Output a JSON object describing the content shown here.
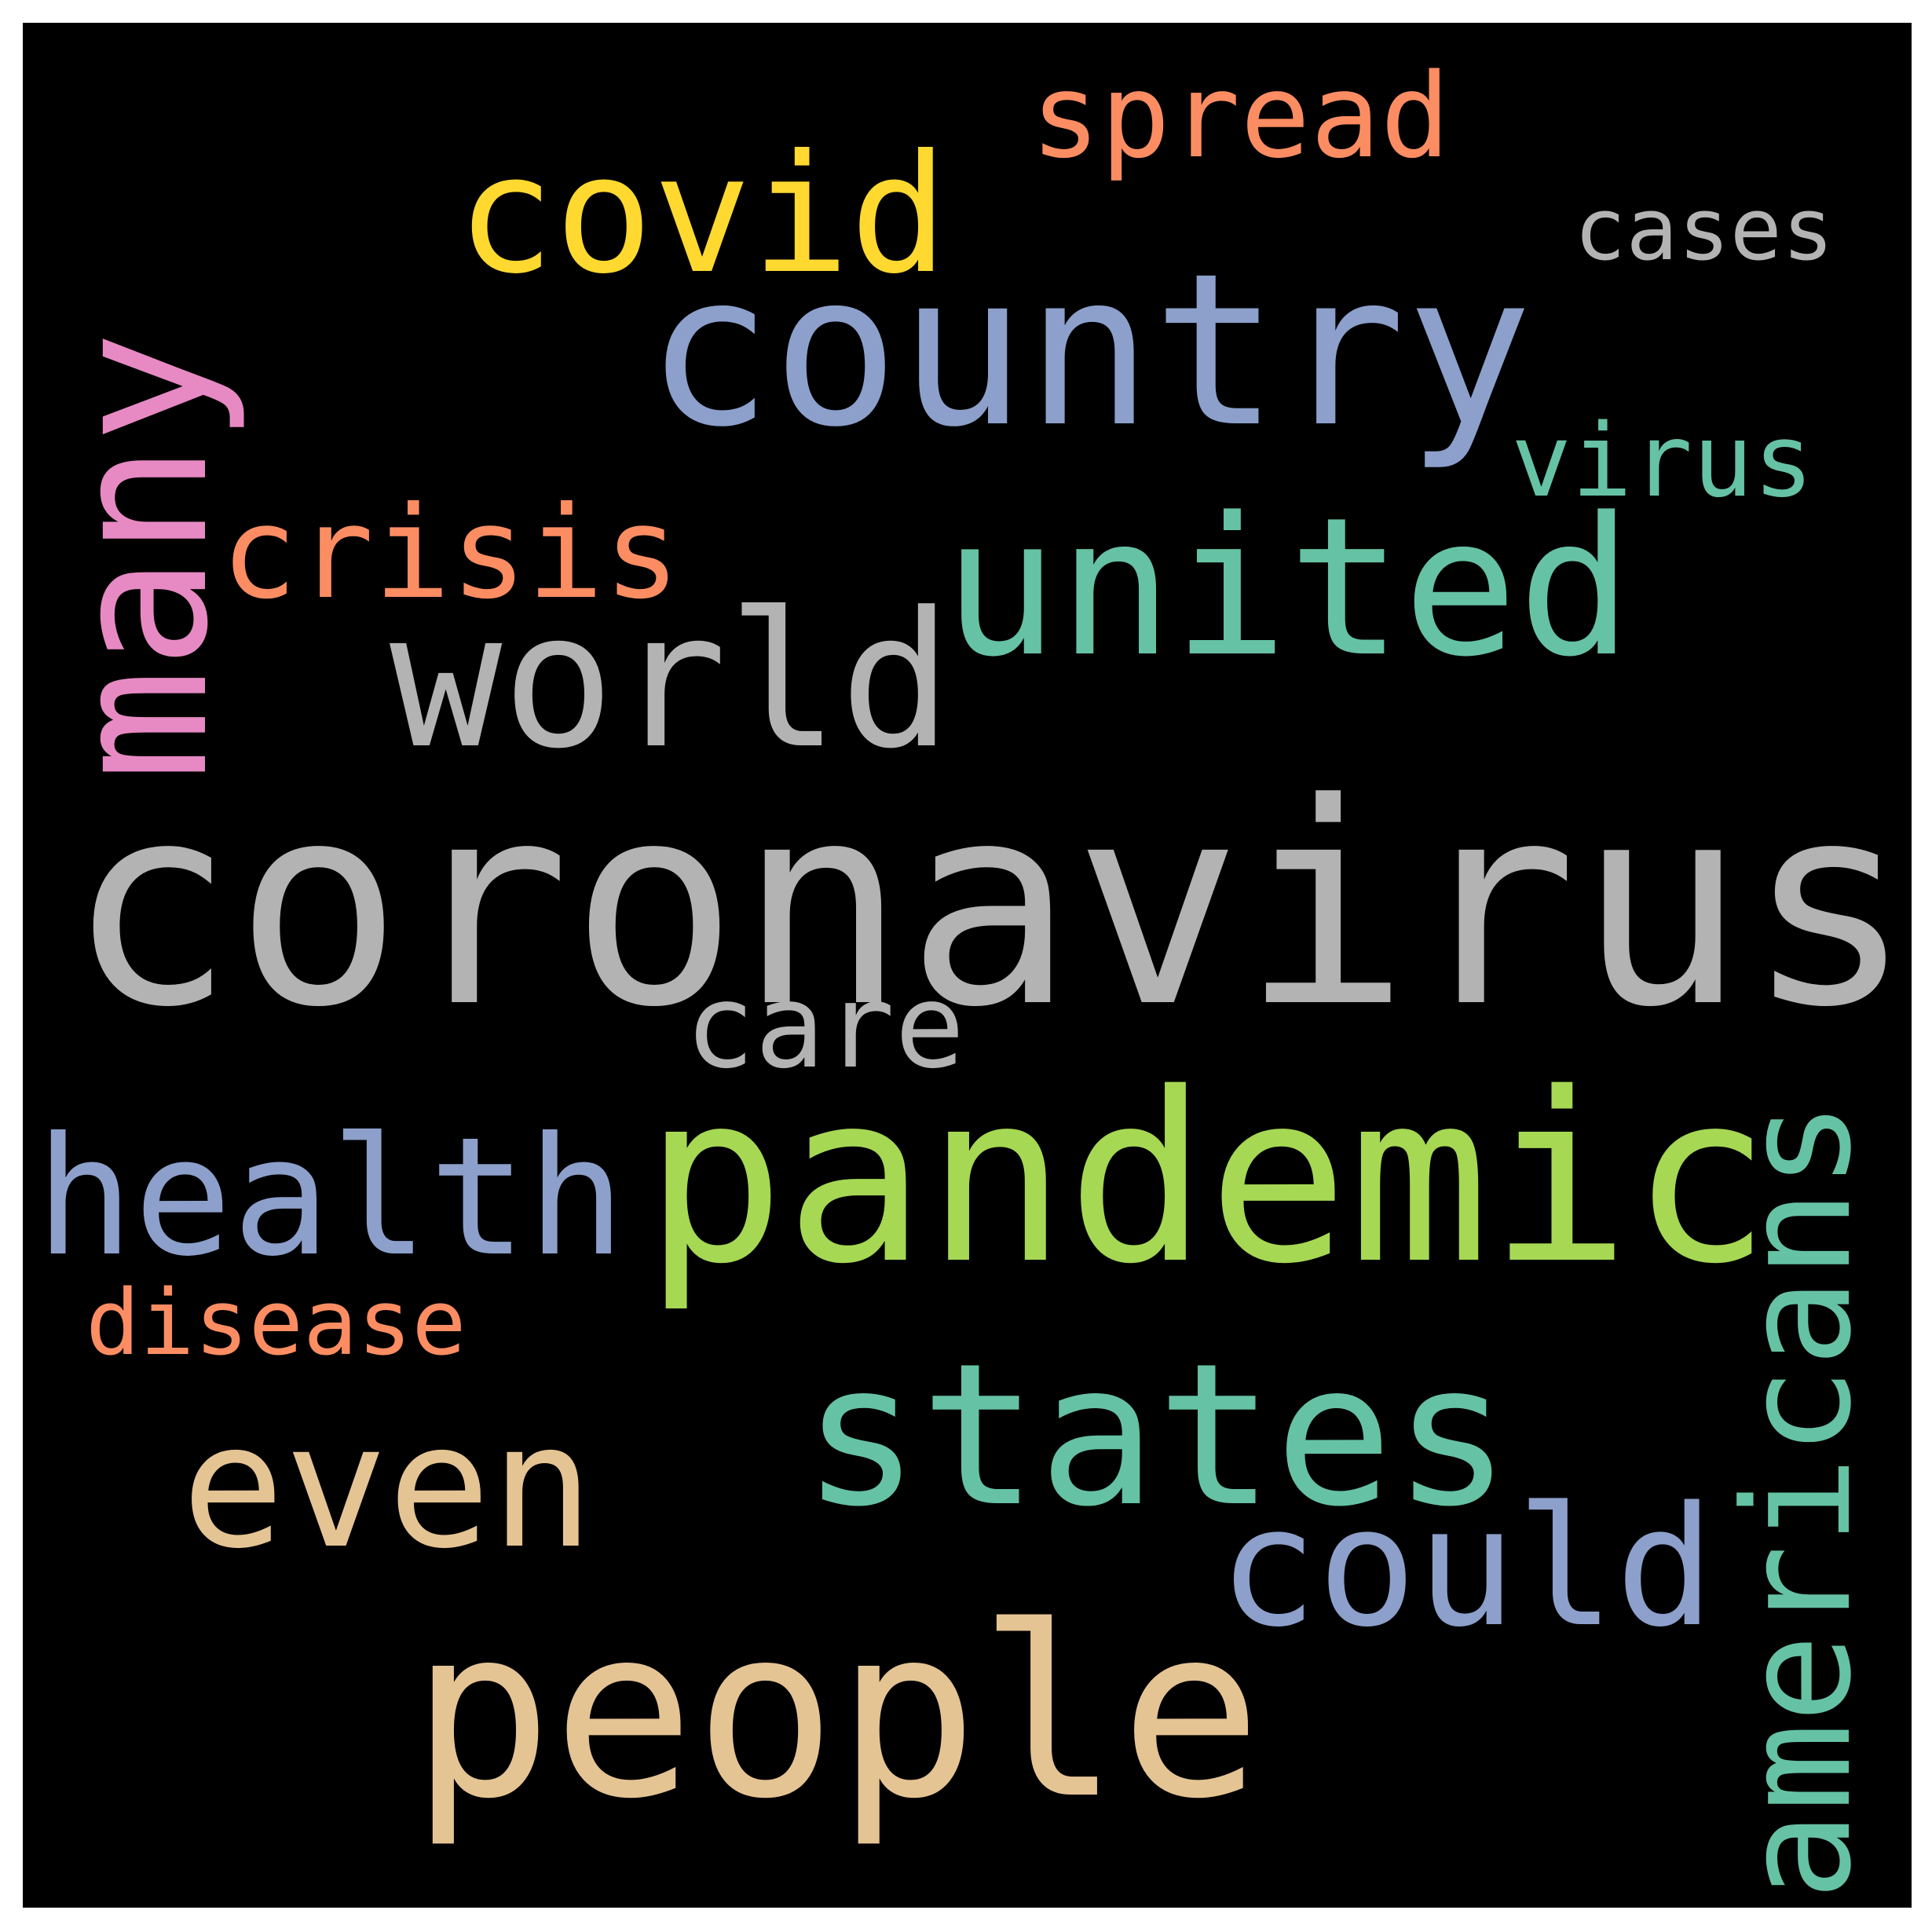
{
  "words": {
    "coronavirus": {
      "text": "coronavirus",
      "color": "#B3B3B3",
      "orientation": "horizontal"
    },
    "pandemic": {
      "text": "pandemic",
      "color": "#A6D854",
      "orientation": "horizontal"
    },
    "people": {
      "text": "people",
      "color": "#E5C494",
      "orientation": "horizontal"
    },
    "country": {
      "text": "country",
      "color": "#8DA0CB",
      "orientation": "horizontal"
    },
    "states": {
      "text": "states",
      "color": "#66C2A5",
      "orientation": "horizontal"
    },
    "united": {
      "text": "united",
      "color": "#66C2A5",
      "orientation": "horizontal"
    },
    "world": {
      "text": "world",
      "color": "#B3B3B3",
      "orientation": "horizontal"
    },
    "health": {
      "text": "health",
      "color": "#8DA0CB",
      "orientation": "horizontal"
    },
    "even": {
      "text": "even",
      "color": "#E5C494",
      "orientation": "horizontal"
    },
    "could": {
      "text": "could",
      "color": "#8DA0CB",
      "orientation": "horizontal"
    },
    "covid": {
      "text": "covid",
      "color": "#FFD92F",
      "orientation": "horizontal"
    },
    "crisis": {
      "text": "crisis",
      "color": "#FC8D62",
      "orientation": "horizontal"
    },
    "care": {
      "text": "care",
      "color": "#B3B3B3",
      "orientation": "horizontal"
    },
    "spread": {
      "text": "spread",
      "color": "#FC8D62",
      "orientation": "horizontal"
    },
    "virus": {
      "text": "virus",
      "color": "#66C2A5",
      "orientation": "horizontal"
    },
    "cases": {
      "text": "cases",
      "color": "#B3B3B3",
      "orientation": "horizontal"
    },
    "disease": {
      "text": "disease",
      "color": "#FC8D62",
      "orientation": "horizontal"
    },
    "many": {
      "text": "many",
      "color": "#E78AC3",
      "orientation": "vertical"
    },
    "americans": {
      "text": "americans",
      "color": "#66C2A5",
      "orientation": "vertical"
    }
  },
  "background_color": "#000000"
}
